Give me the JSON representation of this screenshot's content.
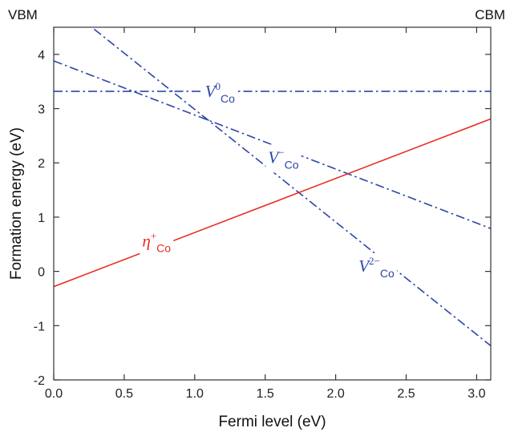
{
  "chart_data": {
    "type": "line",
    "xlabel": "Fermi level (eV)",
    "ylabel": "Formation energy (eV)",
    "xlim": [
      0,
      3.1
    ],
    "ylim": [
      -2,
      4.5
    ],
    "x_ticks": [
      0.0,
      0.5,
      1.0,
      1.5,
      2.0,
      2.5,
      3.0
    ],
    "y_ticks": [
      -2,
      -1,
      0,
      1,
      2,
      3,
      4
    ],
    "x_tick_labels": [
      "0.0",
      "0.5",
      "1.0",
      "1.5",
      "2.0",
      "2.5",
      "3.0"
    ],
    "y_tick_labels": [
      "-2",
      "-1",
      "0",
      "1",
      "2",
      "3",
      "4"
    ],
    "edge_labels": {
      "left": "VBM",
      "right": "CBM"
    },
    "grid": false,
    "series": [
      {
        "name_main": "V",
        "name_sub": "Co",
        "name_sup": "0",
        "x": [
          0.0,
          3.1
        ],
        "y": [
          3.32,
          3.32
        ],
        "color": "#2d45a8",
        "style": "dashdot"
      },
      {
        "name_main": "V",
        "name_sub": "Co",
        "name_sup": "−",
        "x": [
          0.0,
          3.1
        ],
        "y": [
          3.88,
          0.79
        ],
        "color": "#2d45a8",
        "style": "dashdot"
      },
      {
        "name_main": "V",
        "name_sub": "Co",
        "name_sup": "2−",
        "x": [
          0.0,
          3.1
        ],
        "y": [
          5.06,
          -1.37
        ],
        "color": "#2d45a8",
        "style": "dashdot"
      },
      {
        "name_main": "η",
        "name_sub": "Co",
        "name_sup": "+",
        "x": [
          0.0,
          3.1
        ],
        "y": [
          -0.28,
          2.81
        ],
        "color": "#e8291f",
        "style": "solid"
      }
    ],
    "series_label_anchors": [
      {
        "x": 1.18,
        "y": 3.32
      },
      {
        "x": 1.63,
        "y": 2.1
      },
      {
        "x": 2.29,
        "y": 0.1
      },
      {
        "x": 0.73,
        "y": 0.56
      }
    ]
  }
}
